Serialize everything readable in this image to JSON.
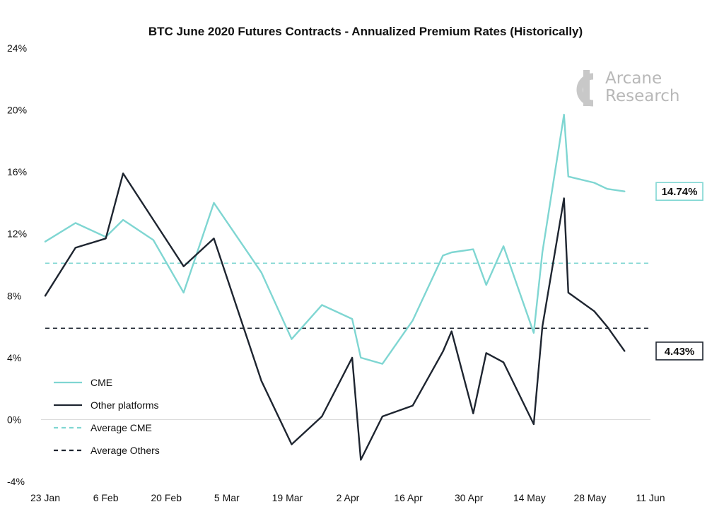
{
  "chart_data": {
    "type": "line",
    "title": "BTC June 2020 Futures Contracts - Annualized Premium Rates (Historically)",
    "xlabel": "",
    "ylabel": "",
    "ylim": [
      -4,
      24
    ],
    "y_ticks": [
      24,
      20,
      16,
      12,
      8,
      4,
      0,
      -4
    ],
    "y_tick_labels": [
      "24%",
      "20%",
      "16%",
      "12%",
      "8%",
      "4%",
      "0%",
      "-4%"
    ],
    "x_range": [
      0,
      140
    ],
    "x_ticks": [
      {
        "label": "23 Jan",
        "day": 0
      },
      {
        "label": "6 Feb",
        "day": 14
      },
      {
        "label": "20 Feb",
        "day": 28
      },
      {
        "label": "5 Mar",
        "day": 42
      },
      {
        "label": "19 Mar",
        "day": 56
      },
      {
        "label": "2 Apr",
        "day": 70
      },
      {
        "label": "16 Apr",
        "day": 84
      },
      {
        "label": "30 Apr",
        "day": 98
      },
      {
        "label": "14 May",
        "day": 112
      },
      {
        "label": "28 May",
        "day": 126
      },
      {
        "label": "11 Jun",
        "day": 140
      }
    ],
    "series": [
      {
        "name": "CME",
        "color": "#7fd6d2",
        "style": "solid",
        "x": [
          0,
          7,
          14,
          18,
          25,
          32,
          39,
          50,
          57,
          64,
          71,
          73,
          78,
          85,
          92,
          94,
          99,
          102,
          106,
          113,
          115,
          120,
          121,
          127,
          130,
          134
        ],
        "y": [
          11.5,
          12.7,
          11.8,
          12.9,
          11.6,
          8.2,
          14.0,
          9.5,
          5.2,
          7.4,
          6.5,
          4.0,
          3.6,
          6.4,
          10.6,
          10.8,
          11.0,
          8.7,
          11.2,
          5.6,
          10.8,
          19.7,
          15.7,
          15.3,
          14.9,
          14.74
        ]
      },
      {
        "name": "Other platforms",
        "color": "#1e2530",
        "style": "solid",
        "x": [
          0,
          7,
          14,
          18,
          25,
          32,
          39,
          50,
          57,
          64,
          71,
          73,
          78,
          85,
          92,
          94,
          99,
          102,
          106,
          113,
          115,
          120,
          121,
          127,
          130,
          134
        ],
        "y": [
          8.0,
          11.1,
          11.7,
          15.9,
          12.9,
          9.9,
          11.7,
          2.5,
          -1.6,
          0.2,
          4.0,
          -2.6,
          0.2,
          0.9,
          4.4,
          5.7,
          0.4,
          4.3,
          3.7,
          -0.3,
          6.0,
          14.3,
          8.2,
          7.0,
          6.0,
          4.43
        ]
      }
    ],
    "reference_lines": [
      {
        "name": "Average CME",
        "value": 10.1,
        "color": "#7fd6d2",
        "style": "dashed"
      },
      {
        "name": "Average Others",
        "value": 5.9,
        "color": "#1e2530",
        "style": "dashed"
      }
    ],
    "end_labels": [
      {
        "series": "CME",
        "text": "14.74%",
        "border_color": "#7fd6d2"
      },
      {
        "series": "Other platforms",
        "text": "4.43%",
        "border_color": "#1e2530"
      }
    ],
    "legend": {
      "placement": "bottom-left",
      "entries": [
        {
          "label": "CME",
          "color": "#7fd6d2",
          "style": "solid"
        },
        {
          "label": "Other platforms",
          "color": "#1e2530",
          "style": "solid"
        },
        {
          "label": "Average CME",
          "color": "#7fd6d2",
          "style": "dashed"
        },
        {
          "label": "Average Others",
          "color": "#1e2530",
          "style": "dashed"
        }
      ]
    },
    "grid": "zero-line-only"
  },
  "watermark": {
    "line1": "Arcane",
    "line2": "Research",
    "icon": "arcane-logo-icon"
  }
}
